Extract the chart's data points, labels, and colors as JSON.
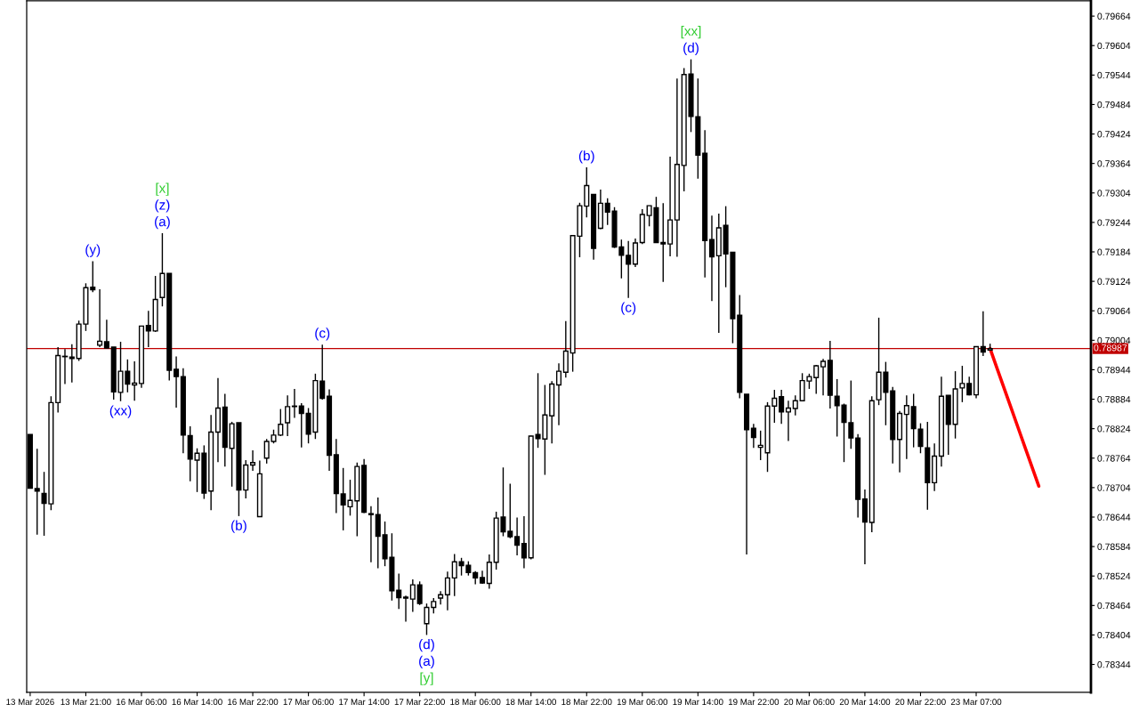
{
  "chart_data": {
    "type": "candlestick",
    "categories": [
      "13 Mar 2026",
      null,
      null,
      null,
      null,
      null,
      null,
      null,
      "13 Mar 21:00",
      null,
      null,
      null,
      null,
      null,
      null,
      null,
      "16 Mar 06:00",
      null,
      null,
      null,
      null,
      null,
      null,
      null,
      "16 Mar 14:00",
      null,
      null,
      null,
      null,
      null,
      null,
      null,
      "16 Mar 22:00",
      null,
      null,
      null,
      null,
      null,
      null,
      null,
      "17 Mar 06:00",
      null,
      null,
      null,
      null,
      null,
      null,
      null,
      "17 Mar 14:00",
      null,
      null,
      null,
      null,
      null,
      null,
      null,
      "17 Mar 22:00",
      null,
      null,
      null,
      null,
      null,
      null,
      null,
      "18 Mar 06:00",
      null,
      null,
      null,
      null,
      null,
      null,
      null,
      "18 Mar 14:00",
      null,
      null,
      null,
      null,
      null,
      null,
      null,
      "18 Mar 22:00",
      null,
      null,
      null,
      null,
      null,
      null,
      null,
      "19 Mar 06:00",
      null,
      null,
      null,
      null,
      null,
      null,
      null,
      "19 Mar 14:00",
      null,
      null,
      null,
      null,
      null,
      null,
      null,
      "19 Mar 22:00",
      null,
      null,
      null,
      null,
      null,
      null,
      null,
      "20 Mar 06:00",
      null,
      null,
      null,
      null,
      null,
      null,
      null,
      "20 Mar 14:00",
      null,
      null,
      null,
      null,
      null,
      null,
      null,
      "20 Mar 22:00",
      null,
      null,
      null,
      null,
      null,
      null,
      null,
      "23 Mar 07:00",
      null,
      null,
      null,
      null,
      null,
      null,
      null,
      null,
      null,
      null,
      null,
      null,
      null,
      null,
      null,
      null
    ],
    "ohlc": [
      [
        0.78812,
        0.78812,
        0.78703,
        0.78703
      ],
      [
        0.78702,
        0.78783,
        0.78608,
        0.78697
      ],
      [
        0.78692,
        0.78736,
        0.78606,
        0.78672
      ],
      [
        0.78671,
        0.7889,
        0.78658,
        0.78877
      ],
      [
        0.78877,
        0.7899,
        0.78857,
        0.78973
      ],
      [
        0.78971,
        0.78986,
        0.78915,
        0.78971
      ],
      [
        0.7897,
        0.78996,
        0.78918,
        0.78967
      ],
      [
        0.78967,
        0.79044,
        0.78962,
        0.79037
      ],
      [
        0.79037,
        0.7912,
        0.79023,
        0.79111
      ],
      [
        0.79112,
        0.79165,
        0.79102,
        0.79107
      ],
      [
        0.78994,
        0.79108,
        0.7899,
        0.79002
      ],
      [
        0.79001,
        0.79046,
        0.78988,
        0.78988
      ],
      [
        0.7899,
        0.7899,
        0.78883,
        0.78899
      ],
      [
        0.78898,
        0.79001,
        0.7888,
        0.78941
      ],
      [
        0.78941,
        0.78965,
        0.78898,
        0.78915
      ],
      [
        0.78913,
        0.78961,
        0.78881,
        0.78917
      ],
      [
        0.78916,
        0.79033,
        0.78907,
        0.79033
      ],
      [
        0.79034,
        0.79064,
        0.7899,
        0.79023
      ],
      [
        0.79023,
        0.79135,
        0.79021,
        0.79087
      ],
      [
        0.79091,
        0.79222,
        0.79073,
        0.7914
      ],
      [
        0.7914,
        0.7914,
        0.78922,
        0.78943
      ],
      [
        0.78945,
        0.78971,
        0.78867,
        0.7893
      ],
      [
        0.7893,
        0.78947,
        0.78774,
        0.78811
      ],
      [
        0.7881,
        0.78829,
        0.78717,
        0.78762
      ],
      [
        0.7876,
        0.78784,
        0.78695,
        0.78774
      ],
      [
        0.78774,
        0.7879,
        0.78681,
        0.78693
      ],
      [
        0.78697,
        0.78852,
        0.78658,
        0.78817
      ],
      [
        0.78817,
        0.78927,
        0.78756,
        0.78866
      ],
      [
        0.78868,
        0.78895,
        0.78747,
        0.78786
      ],
      [
        0.78784,
        0.78838,
        0.78706,
        0.78834
      ],
      [
        0.78836,
        0.78836,
        0.78646,
        0.78699
      ],
      [
        0.78699,
        0.7876,
        0.78682,
        0.7875
      ],
      [
        0.7875,
        0.7878,
        0.78738,
        0.78755
      ],
      [
        0.78645,
        0.78759,
        0.78645,
        0.78732
      ],
      [
        0.78764,
        0.78803,
        0.78753,
        0.78798
      ],
      [
        0.78798,
        0.78822,
        0.78794,
        0.78811
      ],
      [
        0.78811,
        0.78864,
        0.78809,
        0.78833
      ],
      [
        0.78836,
        0.78892,
        0.78809,
        0.78869
      ],
      [
        0.78869,
        0.78905,
        0.78846,
        0.7887
      ],
      [
        0.7887,
        0.78876,
        0.78786,
        0.78855
      ],
      [
        0.78855,
        0.78866,
        0.78794,
        0.78813
      ],
      [
        0.78817,
        0.78936,
        0.78803,
        0.78922
      ],
      [
        0.78921,
        0.78995,
        0.78883,
        0.78886
      ],
      [
        0.7889,
        0.78904,
        0.78738,
        0.7877
      ],
      [
        0.78771,
        0.78803,
        0.78652,
        0.78692
      ],
      [
        0.78691,
        0.78744,
        0.78617,
        0.78669
      ],
      [
        0.78665,
        0.7872,
        0.78647,
        0.78678
      ],
      [
        0.78677,
        0.78755,
        0.78605,
        0.78747
      ],
      [
        0.78749,
        0.78762,
        0.78652,
        0.78654
      ],
      [
        0.78651,
        0.78666,
        0.78552,
        0.78649
      ],
      [
        0.78649,
        0.78684,
        0.7854,
        0.78605
      ],
      [
        0.78608,
        0.78635,
        0.78544,
        0.78559
      ],
      [
        0.78562,
        0.78611,
        0.78474,
        0.78494
      ],
      [
        0.78495,
        0.78529,
        0.78457,
        0.7848
      ],
      [
        0.78481,
        0.78484,
        0.78431,
        0.78479
      ],
      [
        0.78477,
        0.78517,
        0.78451,
        0.78506
      ],
      [
        0.78506,
        0.78513,
        0.78465,
        0.78468
      ],
      [
        0.78427,
        0.78468,
        0.78404,
        0.7846
      ],
      [
        0.7846,
        0.78479,
        0.78448,
        0.78472
      ],
      [
        0.78479,
        0.78493,
        0.78466,
        0.78486
      ],
      [
        0.78486,
        0.78533,
        0.78454,
        0.7852
      ],
      [
        0.7852,
        0.78569,
        0.78483,
        0.78553
      ],
      [
        0.78553,
        0.78561,
        0.78525,
        0.78545
      ],
      [
        0.78546,
        0.78554,
        0.78525,
        0.78531
      ],
      [
        0.78531,
        0.78534,
        0.78507,
        0.7852
      ],
      [
        0.78521,
        0.78535,
        0.78508,
        0.7851
      ],
      [
        0.78509,
        0.78568,
        0.78498,
        0.78552
      ],
      [
        0.78552,
        0.78655,
        0.78537,
        0.78642
      ],
      [
        0.78644,
        0.78745,
        0.78605,
        0.78614
      ],
      [
        0.78615,
        0.78712,
        0.78601,
        0.78604
      ],
      [
        0.78604,
        0.78643,
        0.78566,
        0.78587
      ],
      [
        0.7859,
        0.78646,
        0.7854,
        0.78561
      ],
      [
        0.78561,
        0.7881,
        0.78558,
        0.78809
      ],
      [
        0.78812,
        0.78937,
        0.78785,
        0.78804
      ],
      [
        0.78803,
        0.78913,
        0.7873,
        0.78852
      ],
      [
        0.7885,
        0.78921,
        0.78794,
        0.78915
      ],
      [
        0.78913,
        0.78957,
        0.78831,
        0.78941
      ],
      [
        0.78939,
        0.79043,
        0.78928,
        0.78982
      ],
      [
        0.78978,
        0.79217,
        0.7894,
        0.79217
      ],
      [
        0.79216,
        0.79284,
        0.79173,
        0.79278
      ],
      [
        0.79277,
        0.79356,
        0.79254,
        0.79319
      ],
      [
        0.79301,
        0.79301,
        0.79168,
        0.79191
      ],
      [
        0.79232,
        0.79311,
        0.7923,
        0.79283
      ],
      [
        0.79283,
        0.79293,
        0.79239,
        0.79265
      ],
      [
        0.79267,
        0.79275,
        0.79192,
        0.79194
      ],
      [
        0.79194,
        0.79209,
        0.7913,
        0.79177
      ],
      [
        0.79177,
        0.79206,
        0.7909,
        0.79159
      ],
      [
        0.79159,
        0.79211,
        0.79153,
        0.79202
      ],
      [
        0.79203,
        0.79271,
        0.792,
        0.7926
      ],
      [
        0.79258,
        0.79278,
        0.79236,
        0.79278
      ],
      [
        0.79274,
        0.79296,
        0.79203,
        0.79203
      ],
      [
        0.79203,
        0.79283,
        0.79123,
        0.792
      ],
      [
        0.792,
        0.79378,
        0.79175,
        0.79249
      ],
      [
        0.79249,
        0.79537,
        0.79174,
        0.79362
      ],
      [
        0.7936,
        0.79558,
        0.79307,
        0.79545
      ],
      [
        0.79546,
        0.79576,
        0.79428,
        0.7946
      ],
      [
        0.79459,
        0.79537,
        0.79333,
        0.79381
      ],
      [
        0.79385,
        0.79432,
        0.79132,
        0.79207
      ],
      [
        0.79209,
        0.79258,
        0.79084,
        0.79174
      ],
      [
        0.79176,
        0.79262,
        0.79019,
        0.79233
      ],
      [
        0.79238,
        0.79277,
        0.79112,
        0.7918
      ],
      [
        0.79183,
        0.79183,
        0.78998,
        0.79048
      ],
      [
        0.79055,
        0.79096,
        0.78886,
        0.78898
      ],
      [
        0.78894,
        0.78894,
        0.78568,
        0.78822
      ],
      [
        0.78825,
        0.78834,
        0.78785,
        0.78806
      ],
      [
        0.78786,
        0.7882,
        0.7876,
        0.7879
      ],
      [
        0.78775,
        0.78878,
        0.78736,
        0.7887
      ],
      [
        0.7887,
        0.78903,
        0.78836,
        0.78886
      ],
      [
        0.78889,
        0.78903,
        0.78834,
        0.78858
      ],
      [
        0.78858,
        0.78881,
        0.78799,
        0.78866
      ],
      [
        0.78865,
        0.78892,
        0.78851,
        0.78881
      ],
      [
        0.78881,
        0.78937,
        0.78881,
        0.78922
      ],
      [
        0.78921,
        0.78936,
        0.78905,
        0.7893
      ],
      [
        0.78928,
        0.78954,
        0.78895,
        0.78952
      ],
      [
        0.7895,
        0.78966,
        0.78892,
        0.78961
      ],
      [
        0.78963,
        0.79003,
        0.78865,
        0.78892
      ],
      [
        0.7889,
        0.78925,
        0.78808,
        0.78871
      ],
      [
        0.78872,
        0.78875,
        0.78756,
        0.78837
      ],
      [
        0.78836,
        0.78922,
        0.78783,
        0.78805
      ],
      [
        0.78805,
        0.78813,
        0.78643,
        0.7868
      ],
      [
        0.78681,
        0.787,
        0.78548,
        0.78634
      ],
      [
        0.78633,
        0.7889,
        0.78613,
        0.78881
      ],
      [
        0.78883,
        0.7905,
        0.78872,
        0.78939
      ],
      [
        0.78939,
        0.7896,
        0.78831,
        0.78898
      ],
      [
        0.78901,
        0.78909,
        0.78753,
        0.78802
      ],
      [
        0.78802,
        0.7886,
        0.78735,
        0.78855
      ],
      [
        0.78853,
        0.78892,
        0.78762,
        0.78871
      ],
      [
        0.78869,
        0.78895,
        0.78786,
        0.78824
      ],
      [
        0.78823,
        0.78835,
        0.78774,
        0.78788
      ],
      [
        0.78785,
        0.78838,
        0.78659,
        0.78714
      ],
      [
        0.78714,
        0.78794,
        0.78697,
        0.78768
      ],
      [
        0.78768,
        0.7893,
        0.78747,
        0.7889
      ],
      [
        0.78892,
        0.78892,
        0.78771,
        0.78833
      ],
      [
        0.78833,
        0.78941,
        0.78804,
        0.78905
      ],
      [
        0.78907,
        0.78952,
        0.78878,
        0.78916
      ],
      [
        0.78916,
        0.7893,
        0.78892,
        0.78893
      ],
      [
        0.78893,
        0.78991,
        0.78886,
        0.78991
      ],
      [
        0.78991,
        0.79063,
        0.78972,
        0.7898
      ],
      [
        0.78984,
        0.78997,
        0.78984,
        0.78987
      ],
      null,
      null,
      null,
      null,
      null,
      null,
      null,
      null,
      null,
      null,
      null,
      null,
      null,
      null
    ],
    "series": [
      {
        "type": "line",
        "color": "#ff0000",
        "values": [
          null,
          null,
          null,
          null,
          null,
          null,
          null,
          null,
          null,
          null,
          null,
          null,
          null,
          null,
          null,
          null,
          null,
          null,
          null,
          null,
          null,
          null,
          null,
          null,
          null,
          null,
          null,
          null,
          null,
          null,
          null,
          null,
          null,
          null,
          null,
          null,
          null,
          null,
          null,
          null,
          null,
          null,
          null,
          null,
          null,
          null,
          null,
          null,
          null,
          null,
          null,
          null,
          null,
          null,
          null,
          null,
          null,
          null,
          null,
          null,
          null,
          null,
          null,
          null,
          null,
          null,
          null,
          null,
          null,
          null,
          null,
          null,
          null,
          null,
          null,
          null,
          null,
          null,
          null,
          null,
          null,
          null,
          null,
          null,
          null,
          null,
          null,
          null,
          null,
          null,
          null,
          null,
          null,
          null,
          null,
          null,
          null,
          null,
          null,
          null,
          null,
          null,
          null,
          null,
          null,
          null,
          null,
          null,
          null,
          null,
          null,
          null,
          null,
          null,
          null,
          null,
          null,
          null,
          null,
          null,
          null,
          null,
          null,
          null,
          null,
          null,
          null,
          null,
          null,
          null,
          null,
          null,
          null,
          null,
          null,
          null,
          null,
          null,
          0.78987,
          0.78947,
          0.78907,
          0.78867,
          0.78827,
          0.78787,
          0.78747,
          0.78707,
          null,
          null,
          null,
          null,
          null,
          null,
          null
        ]
      }
    ],
    "ref_lines": [
      {
        "axis": "y",
        "value": 0.78987,
        "label": "0.78987",
        "color": "#c00000"
      }
    ],
    "annotations": [
      {
        "text": "(y)",
        "y": 0.79165
      },
      {
        "text": "(a)",
        "y": 0.79222
      },
      {
        "text": "(z)",
        "y": 0.79222
      },
      {
        "text": "[x]",
        "y": 0.79222
      },
      {
        "text": "(xx)",
        "y": 0.7888
      },
      {
        "text": "(b)",
        "y": 0.78646
      },
      {
        "text": "(c)",
        "y": 0.78995
      },
      {
        "text": "(d)",
        "y": 0.78404
      },
      {
        "text": "(a)",
        "y": 0.78404
      },
      {
        "text": "[y]",
        "y": 0.78404
      },
      {
        "text": "(b)",
        "y": 0.79356
      },
      {
        "text": "(c)",
        "y": 0.7909
      },
      {
        "text": "(d)",
        "y": 0.79576
      },
      {
        "text": "[xx]",
        "y": 0.79576
      }
    ],
    "ylim": [
      0.78287,
      0.79695
    ],
    "yticks": [
      0.78344,
      0.78404,
      0.78464,
      0.78524,
      0.78584,
      0.78644,
      0.78704,
      0.78764,
      0.78824,
      0.78884,
      0.78944,
      0.79004,
      0.79064,
      0.79124,
      0.79184,
      0.79244,
      0.79304,
      0.79364,
      0.79424,
      0.79484,
      0.79544,
      0.79604,
      0.79664
    ]
  }
}
